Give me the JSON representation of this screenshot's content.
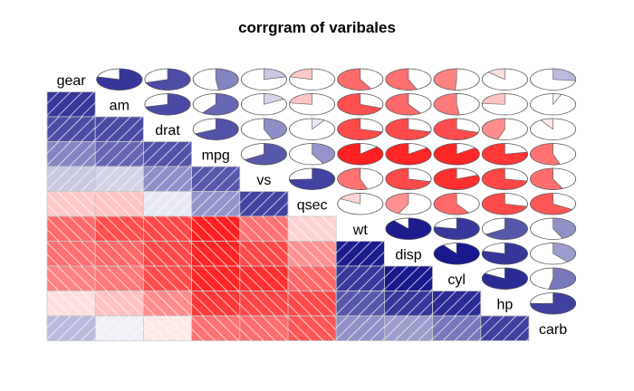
{
  "chart_data": {
    "type": "heatmap",
    "title": "corrgram of varibales",
    "variables": [
      "gear",
      "am",
      "drat",
      "mpg",
      "vs",
      "qsec",
      "wt",
      "disp",
      "cyl",
      "hp",
      "carb"
    ],
    "lower_panel": "shade",
    "upper_panel": "pie",
    "positive_color": "#0000ff",
    "negative_color": "#ff0000",
    "matrix": [
      [
        1.0,
        0.79,
        0.7,
        0.48,
        0.21,
        -0.21,
        -0.58,
        -0.56,
        -0.49,
        -0.13,
        0.27
      ],
      [
        0.79,
        1.0,
        0.71,
        0.6,
        0.17,
        -0.23,
        -0.69,
        -0.59,
        -0.52,
        -0.24,
        0.06
      ],
      [
        0.7,
        0.71,
        1.0,
        0.68,
        0.44,
        0.09,
        -0.71,
        -0.71,
        -0.7,
        -0.45,
        -0.09
      ],
      [
        0.48,
        0.6,
        0.68,
        1.0,
        0.66,
        0.42,
        -0.87,
        -0.85,
        -0.85,
        -0.78,
        -0.55
      ],
      [
        0.21,
        0.17,
        0.44,
        0.66,
        1.0,
        0.74,
        -0.55,
        -0.71,
        -0.81,
        -0.72,
        -0.57
      ],
      [
        -0.21,
        -0.23,
        0.09,
        0.42,
        0.74,
        1.0,
        -0.17,
        -0.43,
        -0.59,
        -0.71,
        -0.66
      ],
      [
        -0.58,
        -0.69,
        -0.71,
        -0.87,
        -0.55,
        -0.17,
        1.0,
        0.89,
        0.78,
        0.66,
        0.43
      ],
      [
        -0.56,
        -0.59,
        -0.71,
        -0.85,
        -0.71,
        -0.43,
        0.89,
        1.0,
        0.9,
        0.79,
        0.39
      ],
      [
        -0.49,
        -0.52,
        -0.7,
        -0.85,
        -0.81,
        -0.59,
        0.78,
        0.9,
        1.0,
        0.83,
        0.53
      ],
      [
        -0.13,
        -0.24,
        -0.45,
        -0.78,
        -0.72,
        -0.71,
        0.66,
        0.79,
        0.83,
        1.0,
        0.75
      ],
      [
        0.27,
        0.06,
        -0.09,
        -0.55,
        -0.57,
        -0.66,
        0.43,
        0.39,
        0.53,
        0.75,
        1.0
      ]
    ]
  }
}
